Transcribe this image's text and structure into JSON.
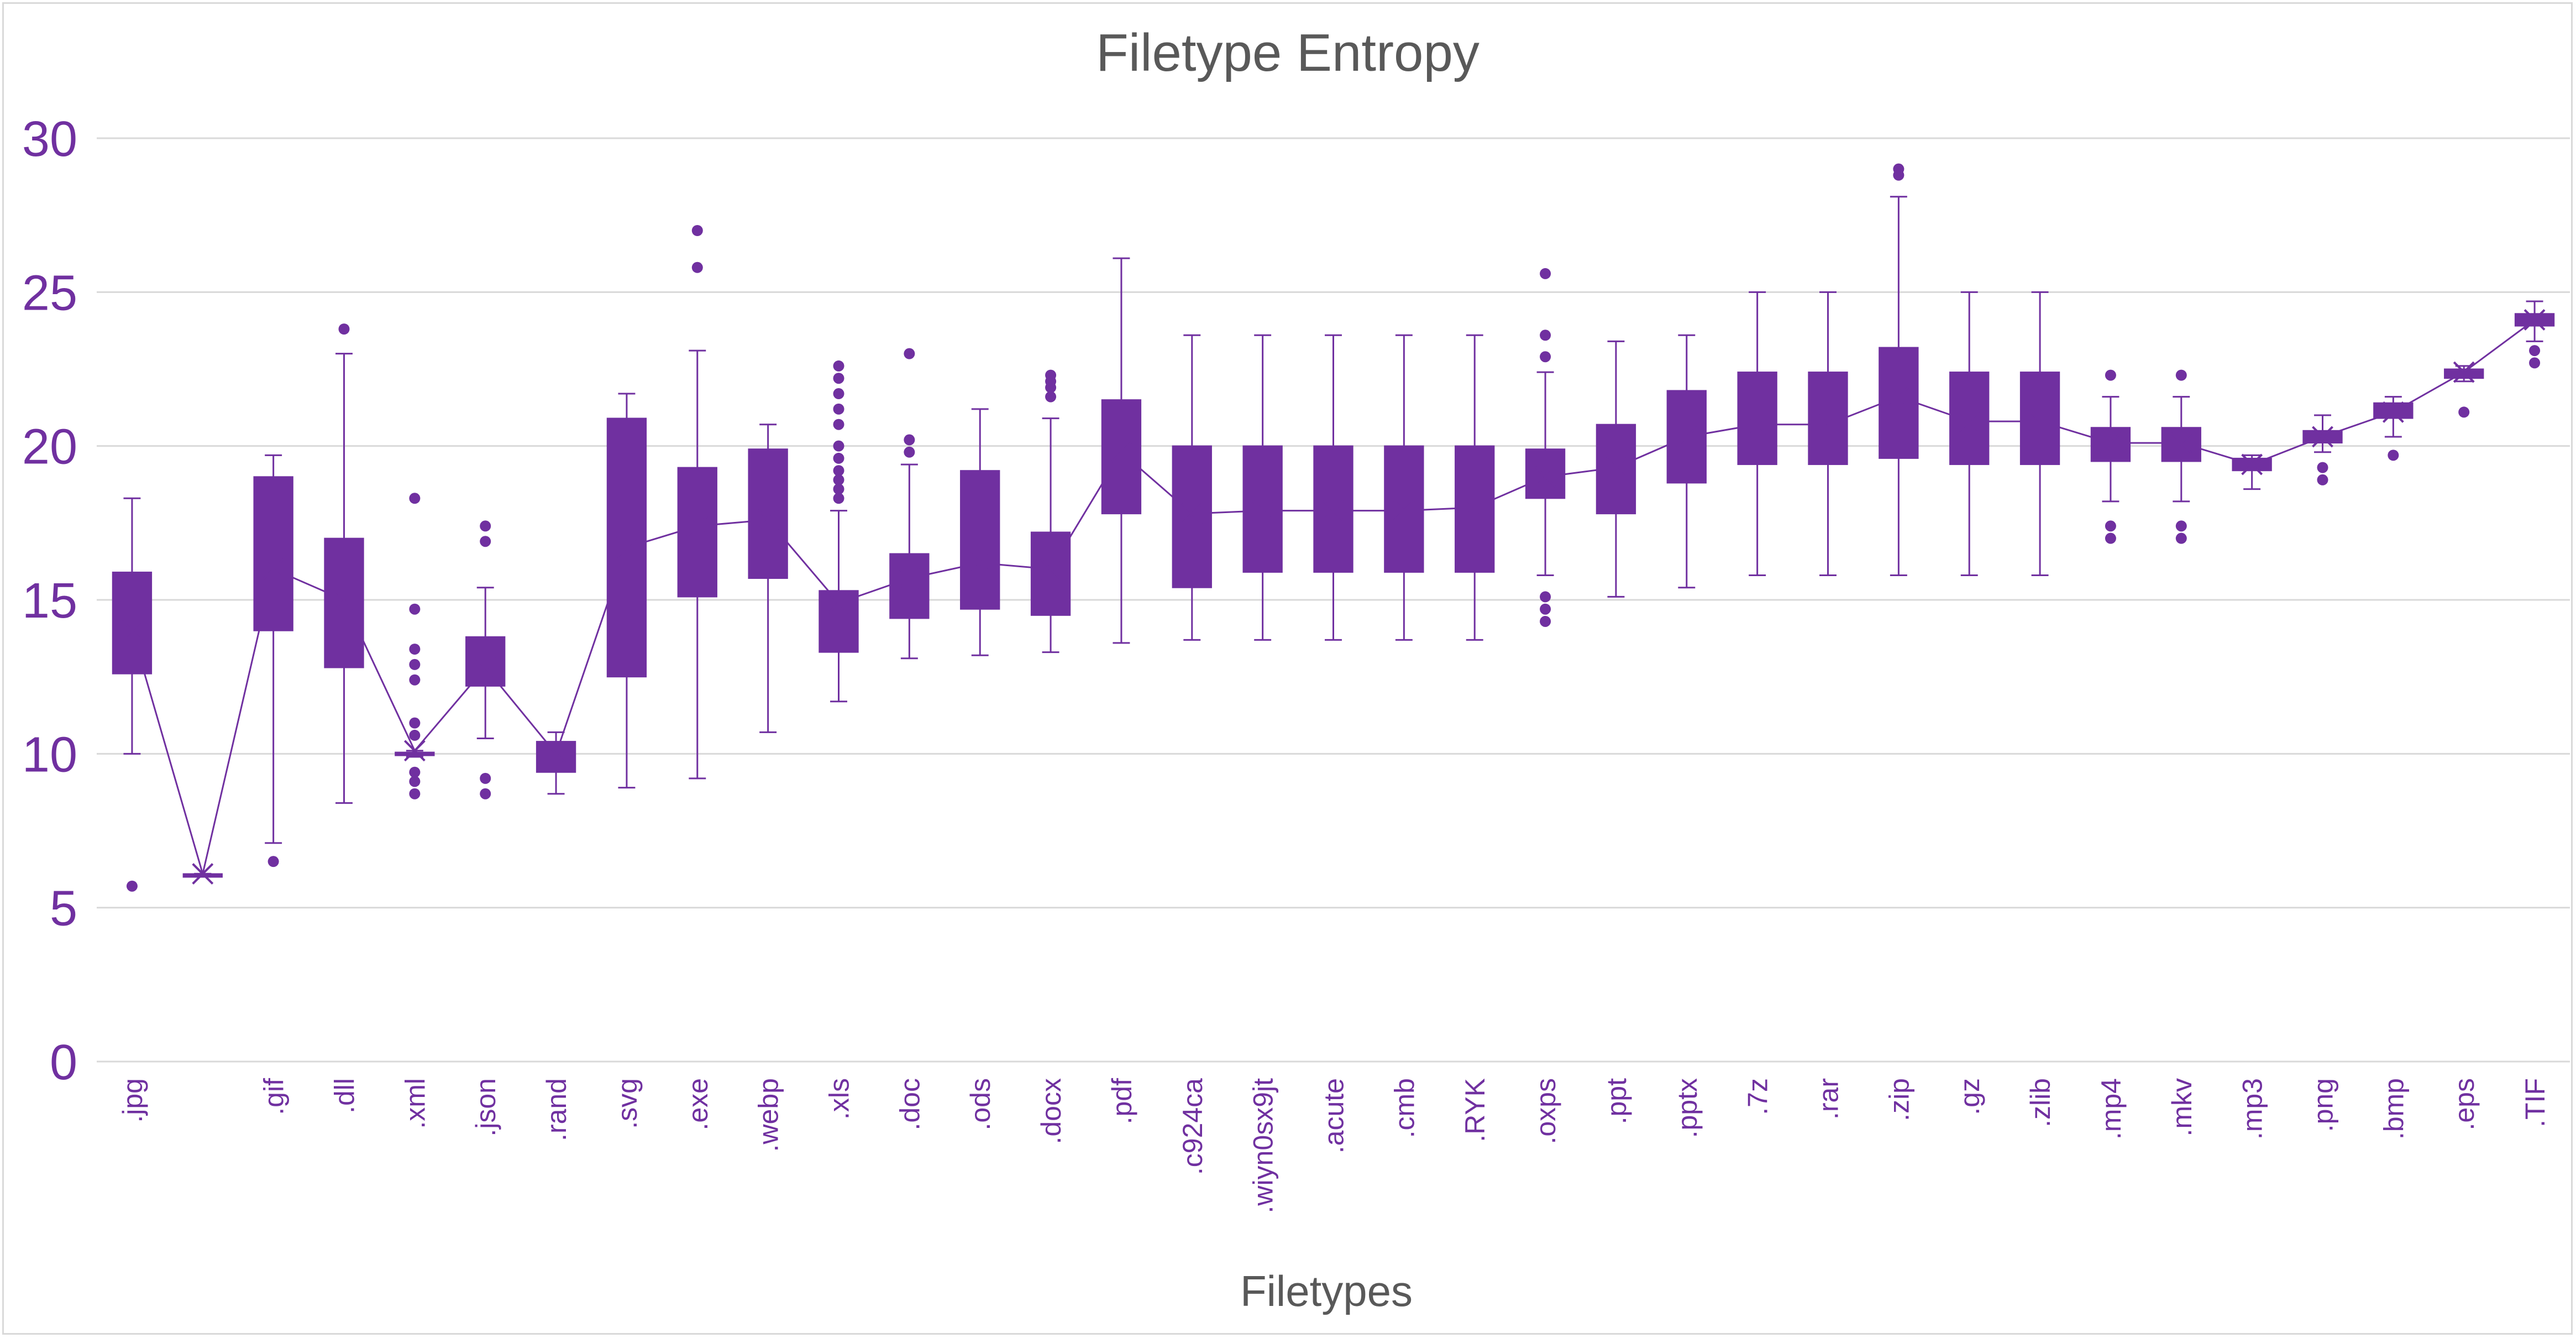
{
  "chart_data": {
    "type": "box",
    "title": "Filetype Entropy",
    "xlabel": "Filetypes",
    "ylabel": "",
    "ylim": [
      0,
      30
    ],
    "yticks": [
      0,
      5,
      10,
      15,
      20,
      25,
      30
    ],
    "grid": true,
    "legend": "none",
    "colors": {
      "box": "#7030a0",
      "grid": "#d9d9d9",
      "text": "#595959"
    },
    "categories": [
      ".jpg",
      "",
      ".gif",
      ".dll",
      ".xml",
      ".json",
      ".rand",
      ".svg",
      ".exe",
      ".webp",
      ".xls",
      ".doc",
      ".ods",
      ".docx",
      ".pdf",
      ".c924ca",
      ".wiyn0sx9jt",
      ".acute",
      ".cmb",
      ".RYK",
      ".oxps",
      ".ppt",
      ".pptx",
      ".7z",
      ".rar",
      ".zip",
      ".gz",
      ".zlib",
      ".mp4",
      ".mkv",
      ".mp3",
      ".png",
      ".bmp",
      ".eps",
      ".TIF"
    ],
    "boxes": [
      {
        "min": 10.0,
        "q1": 12.6,
        "median": 14.0,
        "q3": 15.9,
        "max": 18.3,
        "mean": 14.0,
        "outliers": [
          5.7
        ]
      },
      {
        "min": 6.1,
        "q1": 6.1,
        "median": 6.1,
        "q3": 6.1,
        "max": 6.1,
        "mean": 6.1,
        "outliers": []
      },
      {
        "min": 7.1,
        "q1": 14.0,
        "median": 16.0,
        "q3": 19.0,
        "max": 19.7,
        "mean": 16.0,
        "outliers": [
          6.5
        ]
      },
      {
        "min": 8.4,
        "q1": 12.8,
        "median": 15.0,
        "q3": 17.0,
        "max": 23.0,
        "mean": 15.0,
        "outliers": [
          23.8
        ]
      },
      {
        "min": 9.9,
        "q1": 9.95,
        "median": 10.0,
        "q3": 10.05,
        "max": 10.1,
        "mean": 10.1,
        "outliers": [
          8.7,
          9.1,
          9.4,
          10.6,
          11.0,
          12.4,
          12.9,
          13.4,
          14.7,
          18.3
        ]
      },
      {
        "min": 10.5,
        "q1": 12.2,
        "median": 12.8,
        "q3": 13.8,
        "max": 15.4,
        "mean": 12.8,
        "outliers": [
          8.7,
          9.2,
          16.9,
          17.4
        ]
      },
      {
        "min": 8.7,
        "q1": 9.4,
        "median": 10.0,
        "q3": 10.4,
        "max": 10.7,
        "mean": 10.0,
        "outliers": []
      },
      {
        "min": 8.9,
        "q1": 12.5,
        "median": 16.7,
        "q3": 20.9,
        "max": 21.7,
        "mean": 16.7,
        "outliers": []
      },
      {
        "min": 9.2,
        "q1": 15.1,
        "median": 17.4,
        "q3": 19.3,
        "max": 23.1,
        "mean": 17.4,
        "outliers": [
          25.8,
          27.0
        ]
      },
      {
        "min": 10.7,
        "q1": 15.7,
        "median": 17.6,
        "q3": 19.9,
        "max": 20.7,
        "mean": 17.6,
        "outliers": []
      },
      {
        "min": 11.7,
        "q1": 13.3,
        "median": 14.9,
        "q3": 15.3,
        "max": 17.9,
        "mean": 14.9,
        "outliers": [
          18.3,
          18.6,
          18.9,
          19.2,
          19.6,
          20.0,
          20.7,
          21.2,
          21.7,
          22.2,
          22.6
        ]
      },
      {
        "min": 13.1,
        "q1": 14.4,
        "median": 15.7,
        "q3": 16.5,
        "max": 19.4,
        "mean": 15.7,
        "outliers": [
          19.8,
          20.2,
          23.0
        ]
      },
      {
        "min": 13.2,
        "q1": 14.7,
        "median": 16.2,
        "q3": 19.2,
        "max": 21.2,
        "mean": 16.2,
        "outliers": []
      },
      {
        "min": 13.3,
        "q1": 14.5,
        "median": 16.0,
        "q3": 17.2,
        "max": 20.9,
        "mean": 16.0,
        "outliers": [
          21.6,
          21.9,
          22.1,
          22.3
        ]
      },
      {
        "min": 13.6,
        "q1": 17.8,
        "median": 19.8,
        "q3": 21.5,
        "max": 26.1,
        "mean": 19.8,
        "outliers": []
      },
      {
        "min": 13.7,
        "q1": 15.4,
        "median": 17.8,
        "q3": 20.0,
        "max": 23.6,
        "mean": 17.8,
        "outliers": []
      },
      {
        "min": 13.7,
        "q1": 15.9,
        "median": 17.9,
        "q3": 20.0,
        "max": 23.6,
        "mean": 17.9,
        "outliers": []
      },
      {
        "min": 13.7,
        "q1": 15.9,
        "median": 17.9,
        "q3": 20.0,
        "max": 23.6,
        "mean": 17.9,
        "outliers": []
      },
      {
        "min": 13.7,
        "q1": 15.9,
        "median": 17.9,
        "q3": 20.0,
        "max": 23.6,
        "mean": 17.9,
        "outliers": []
      },
      {
        "min": 13.7,
        "q1": 15.9,
        "median": 18.0,
        "q3": 20.0,
        "max": 23.6,
        "mean": 18.0,
        "outliers": []
      },
      {
        "min": 15.8,
        "q1": 18.3,
        "median": 19.0,
        "q3": 19.9,
        "max": 22.4,
        "mean": 19.0,
        "outliers": [
          14.3,
          14.7,
          15.1,
          22.9,
          23.6,
          25.6
        ]
      },
      {
        "min": 15.1,
        "q1": 17.8,
        "median": 19.3,
        "q3": 20.7,
        "max": 23.4,
        "mean": 19.3,
        "outliers": []
      },
      {
        "min": 15.4,
        "q1": 18.8,
        "median": 20.3,
        "q3": 21.8,
        "max": 23.6,
        "mean": 20.3,
        "outliers": []
      },
      {
        "min": 15.8,
        "q1": 19.4,
        "median": 20.7,
        "q3": 22.4,
        "max": 25.0,
        "mean": 20.7,
        "outliers": []
      },
      {
        "min": 15.8,
        "q1": 19.4,
        "median": 20.7,
        "q3": 22.4,
        "max": 25.0,
        "mean": 20.7,
        "outliers": []
      },
      {
        "min": 15.8,
        "q1": 19.6,
        "median": 21.6,
        "q3": 23.2,
        "max": 28.1,
        "mean": 21.6,
        "outliers": [
          28.8,
          29.0
        ]
      },
      {
        "min": 15.8,
        "q1": 19.4,
        "median": 20.8,
        "q3": 22.4,
        "max": 25.0,
        "mean": 20.8,
        "outliers": []
      },
      {
        "min": 15.8,
        "q1": 19.4,
        "median": 20.8,
        "q3": 22.4,
        "max": 25.0,
        "mean": 20.8,
        "outliers": []
      },
      {
        "min": 18.2,
        "q1": 19.5,
        "median": 20.1,
        "q3": 20.6,
        "max": 21.6,
        "mean": 20.1,
        "outliers": [
          17.0,
          17.4,
          22.3
        ]
      },
      {
        "min": 18.2,
        "q1": 19.5,
        "median": 20.1,
        "q3": 20.6,
        "max": 21.6,
        "mean": 20.1,
        "outliers": [
          17.0,
          17.4,
          22.3
        ]
      },
      {
        "min": 18.6,
        "q1": 19.2,
        "median": 19.4,
        "q3": 19.6,
        "max": 19.7,
        "mean": 19.4,
        "outliers": []
      },
      {
        "min": 19.8,
        "q1": 20.1,
        "median": 20.3,
        "q3": 20.5,
        "max": 21.0,
        "mean": 20.3,
        "outliers": [
          18.9,
          19.3
        ]
      },
      {
        "min": 20.3,
        "q1": 20.9,
        "median": 21.1,
        "q3": 21.4,
        "max": 21.6,
        "mean": 21.1,
        "outliers": [
          19.7
        ]
      },
      {
        "min": 22.1,
        "q1": 22.2,
        "median": 22.4,
        "q3": 22.5,
        "max": 22.6,
        "mean": 22.4,
        "outliers": [
          21.1
        ]
      },
      {
        "min": 23.4,
        "q1": 23.9,
        "median": 24.1,
        "q3": 24.3,
        "max": 24.7,
        "mean": 24.1,
        "outliers": [
          22.7,
          23.1
        ]
      }
    ]
  }
}
